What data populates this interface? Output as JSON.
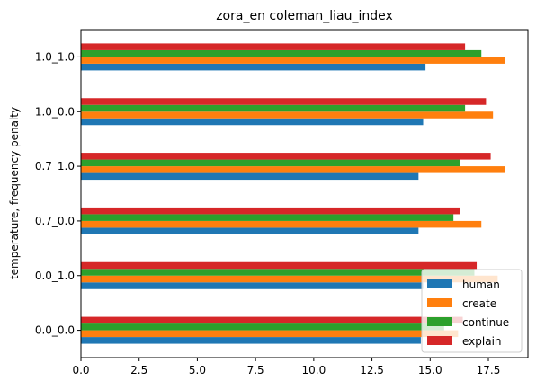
{
  "chart_data": {
    "type": "bar",
    "orientation": "horizontal",
    "title": "zora_en coleman_liau_index",
    "ylabel": "temperature, frequency penalty",
    "xlabel": "",
    "categories": [
      "0.0_0.0",
      "0.0_1.0",
      "0.7_0.0",
      "0.7_1.0",
      "1.0_0.0",
      "1.0_1.0"
    ],
    "xlim": [
      0,
      19.2
    ],
    "xticks": [
      "0.0",
      "2.5",
      "5.0",
      "7.5",
      "10.0",
      "12.5",
      "15.0",
      "17.5"
    ],
    "legend_position": "lower right",
    "grid": false,
    "series": [
      {
        "name": "human",
        "color": "#1f77b4",
        "values": [
          14.6,
          14.7,
          14.5,
          14.5,
          14.7,
          14.8
        ]
      },
      {
        "name": "create",
        "color": "#ff7f0e",
        "values": [
          16.2,
          17.9,
          17.2,
          18.2,
          17.7,
          18.2
        ]
      },
      {
        "name": "continue",
        "color": "#2ca02c",
        "values": [
          15.6,
          16.9,
          16.0,
          16.3,
          16.5,
          17.2
        ]
      },
      {
        "name": "explain",
        "color": "#d62728",
        "values": [
          16.4,
          17.0,
          16.3,
          17.6,
          17.4,
          16.5
        ]
      }
    ]
  }
}
